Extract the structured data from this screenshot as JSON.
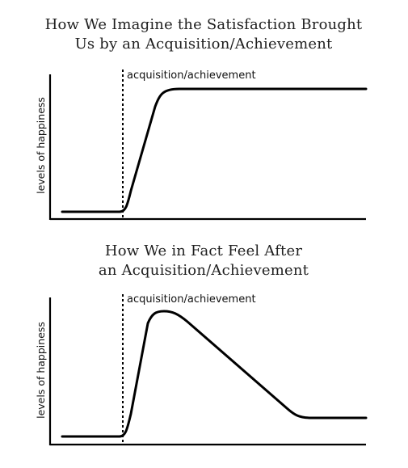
{
  "chart_data": [
    {
      "type": "line",
      "title_lines": [
        "How We Imagine the Satisfaction Brought",
        "Us by an Acquisition/Achievement"
      ],
      "xlabel": "",
      "ylabel": "levels of happiness",
      "annotation": "acquisition/achievement",
      "grid": false,
      "legend": "none",
      "curve": "low baseline, sharp rise after the acquisition marker, then stays high (plateau)"
    },
    {
      "type": "line",
      "title_lines": [
        "How We in Fact Feel After",
        "an Acquisition/Achievement"
      ],
      "xlabel": "",
      "ylabel": "levels of happiness",
      "annotation": "acquisition/achievement",
      "grid": false,
      "legend": "none",
      "curve": "low baseline, sharp rise after the acquisition marker, peak, then gradual decline to a level slightly above the original baseline"
    }
  ]
}
